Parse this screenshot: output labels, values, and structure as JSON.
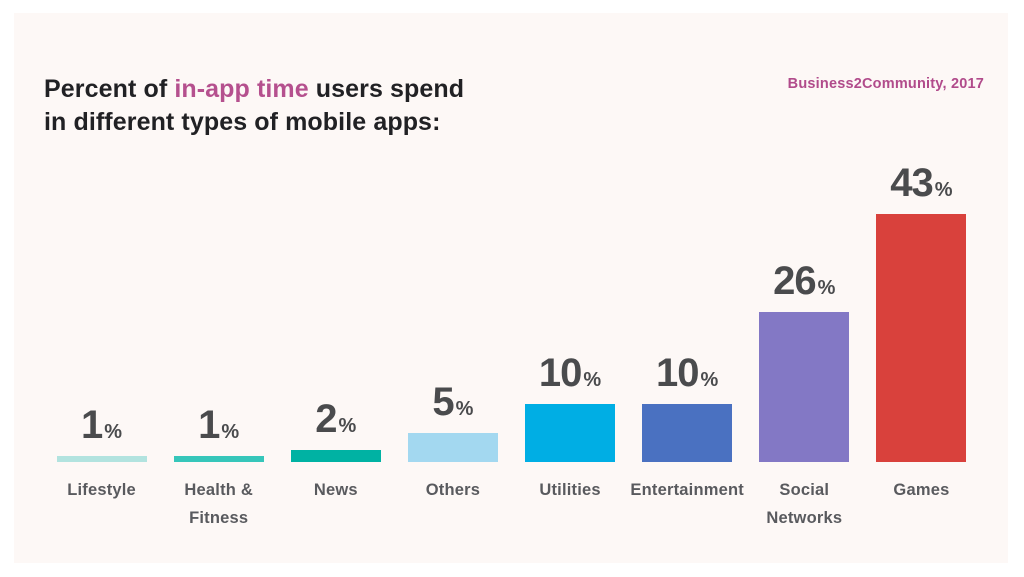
{
  "page": {
    "background": "#ffffff",
    "card_background": "#fdf8f6"
  },
  "header": {
    "title_line1_prefix": "Percent of ",
    "title_highlight": "in-app time",
    "title_line1_suffix": " users spend",
    "title_line2": "in different types of mobile apps:",
    "highlight_color": "#b5508e",
    "source": "Business2Community, 2017",
    "source_color": "#b14b8b"
  },
  "chart_data": {
    "type": "bar",
    "title": "Percent of in-app time users spend in different types of mobile apps",
    "source": "Business2Community, 2017",
    "unit": "%",
    "categories": [
      "Lifestyle",
      "Health & Fitness",
      "News",
      "Others",
      "Utilities",
      "Entertainment",
      "Social Networks",
      "Games"
    ],
    "categories_display": [
      "Lifestyle",
      "Health &\nFitness",
      "News",
      "Others",
      "Utilities",
      "Entertainment",
      "Social\nNetworks",
      "Games"
    ],
    "values": [
      1,
      1,
      2,
      5,
      10,
      10,
      26,
      43
    ],
    "colors": [
      "#b2e3df",
      "#36c6ba",
      "#00b2a3",
      "#a3d8f0",
      "#00aee4",
      "#4a71c1",
      "#8378c5",
      "#d9413c"
    ],
    "value_label_color": "#4a4b4d",
    "category_label_color": "#595a5e",
    "ylim": [
      0,
      45
    ],
    "grid": false,
    "legend": false,
    "value_labels": true
  }
}
